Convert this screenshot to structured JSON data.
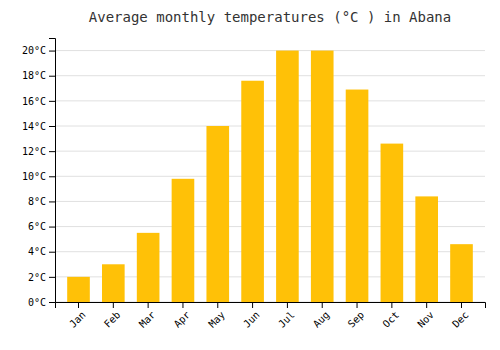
{
  "chart_data": {
    "type": "bar",
    "title": "Average monthly temperatures (°C ) in Abana",
    "categories": [
      "Jan",
      "Feb",
      "Mar",
      "Apr",
      "May",
      "Jun",
      "Jul",
      "Aug",
      "Sep",
      "Oct",
      "Nov",
      "Dec"
    ],
    "values": [
      2.0,
      3.0,
      5.5,
      9.8,
      14.0,
      17.6,
      20.0,
      20.0,
      16.9,
      12.6,
      8.4,
      4.6
    ],
    "color": "#FFC107",
    "ylim": [
      0,
      21
    ],
    "yticks": [
      {
        "value": 0,
        "label": "0°C"
      },
      {
        "value": 2,
        "label": "2°C"
      },
      {
        "value": 4,
        "label": "4°C"
      },
      {
        "value": 6,
        "label": "6°C"
      },
      {
        "value": 8,
        "label": "8°C"
      },
      {
        "value": 10,
        "label": "10°C"
      },
      {
        "value": 12,
        "label": "12°C"
      },
      {
        "value": 14,
        "label": "14°C"
      },
      {
        "value": 16,
        "label": "16°C"
      },
      {
        "value": 18,
        "label": "18°C"
      },
      {
        "value": 20,
        "label": "20°C"
      }
    ],
    "grid": true
  }
}
